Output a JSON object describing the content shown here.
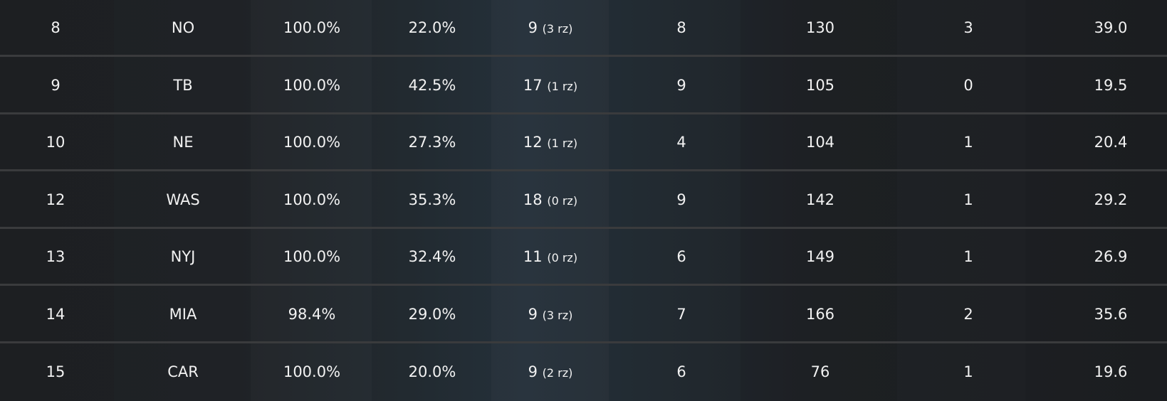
{
  "rows": [
    {
      "rank": "8",
      "team": "NO",
      "c1": "100.0%",
      "c2": "22.0%",
      "c3": "9",
      "c3_rz": "(3 rz)",
      "c4": "8",
      "c5": "130",
      "c6": "3",
      "c7": "39.0"
    },
    {
      "rank": "9",
      "team": "TB",
      "c1": "100.0%",
      "c2": "42.5%",
      "c3": "17",
      "c3_rz": "(1 rz)",
      "c4": "9",
      "c5": "105",
      "c6": "0",
      "c7": "19.5"
    },
    {
      "rank": "10",
      "team": "NE",
      "c1": "100.0%",
      "c2": "27.3%",
      "c3": "12",
      "c3_rz": "(1 rz)",
      "c4": "4",
      "c5": "104",
      "c6": "1",
      "c7": "20.4"
    },
    {
      "rank": "12",
      "team": "WAS",
      "c1": "100.0%",
      "c2": "35.3%",
      "c3": "18",
      "c3_rz": "(0 rz)",
      "c4": "9",
      "c5": "142",
      "c6": "1",
      "c7": "29.2"
    },
    {
      "rank": "13",
      "team": "NYJ",
      "c1": "100.0%",
      "c2": "32.4%",
      "c3": "11",
      "c3_rz": "(0 rz)",
      "c4": "6",
      "c5": "149",
      "c6": "1",
      "c7": "26.9"
    },
    {
      "rank": "14",
      "team": "MIA",
      "c1": "98.4%",
      "c2": "29.0%",
      "c3": "9",
      "c3_rz": "(3 rz)",
      "c4": "7",
      "c5": "166",
      "c6": "2",
      "c7": "35.6"
    },
    {
      "rank": "15",
      "team": "CAR",
      "c1": "100.0%",
      "c2": "20.0%",
      "c3": "9",
      "c3_rz": "(2 rz)",
      "c4": "6",
      "c5": "76",
      "c6": "1",
      "c7": "19.6"
    }
  ]
}
